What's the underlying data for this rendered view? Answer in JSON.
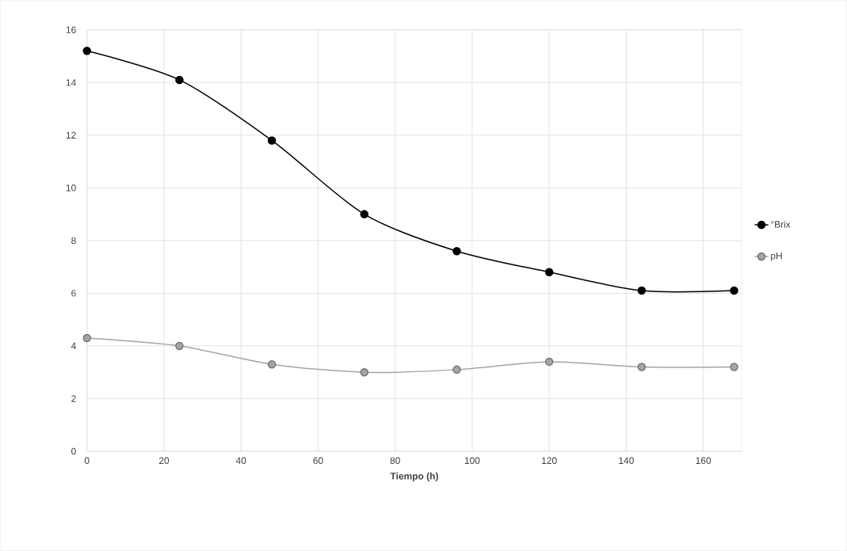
{
  "chart_data": {
    "type": "line",
    "xlabel": "Tiempo (h)",
    "x": [
      0,
      24,
      48,
      72,
      96,
      120,
      144,
      168
    ],
    "series": [
      {
        "name": "°Brix",
        "color": "#000000",
        "values": [
          15.2,
          14.1,
          11.8,
          9.0,
          7.6,
          6.8,
          6.1,
          6.1
        ]
      },
      {
        "name": "pH",
        "color": "#a5a5a5",
        "values": [
          4.3,
          4.0,
          3.3,
          3.0,
          3.1,
          3.4,
          3.2,
          3.2
        ]
      }
    ],
    "xlim": [
      0,
      170
    ],
    "xticks": [
      0,
      20,
      40,
      60,
      80,
      100,
      120,
      140,
      160
    ],
    "ylim": [
      0,
      16
    ],
    "yticks": [
      0,
      2,
      4,
      6,
      8,
      10,
      12,
      14,
      16
    ],
    "grid": true,
    "legend": "right",
    "marker": "circle",
    "line_style": "solid"
  }
}
